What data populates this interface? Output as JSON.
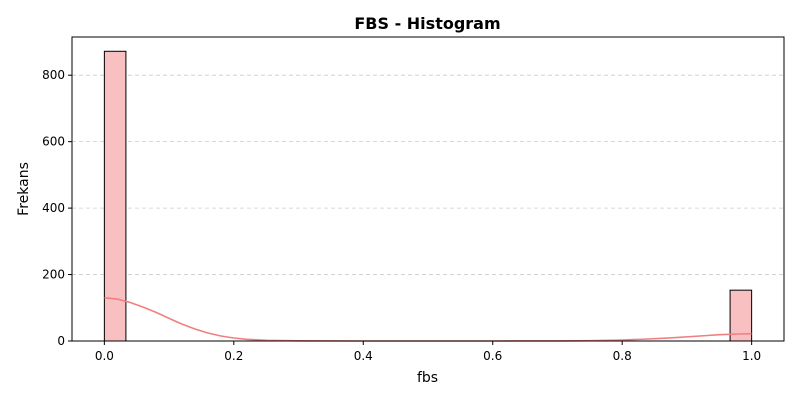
{
  "chart_data": {
    "type": "bar",
    "title": "FBS - Histogram",
    "xlabel": "fbs",
    "ylabel": "Frekans",
    "xlim": [
      -0.05,
      1.05
    ],
    "ylim": [
      0,
      915
    ],
    "xticks": [
      0.0,
      0.2,
      0.4,
      0.6,
      0.8,
      1.0
    ],
    "xtick_labels": [
      "0.0",
      "0.2",
      "0.4",
      "0.6",
      "0.8",
      "1.0"
    ],
    "yticks": [
      0,
      200,
      400,
      600,
      800
    ],
    "ytick_labels": [
      "0",
      "200",
      "400",
      "600",
      "800"
    ],
    "grid": "y-dashed",
    "bars": [
      {
        "x0": 0.0,
        "x1": 0.0333,
        "value": 872
      },
      {
        "x0": 0.9667,
        "x1": 1.0,
        "value": 153
      }
    ],
    "kde": {
      "x": [
        0.0,
        0.02,
        0.04,
        0.06,
        0.08,
        0.1,
        0.12,
        0.14,
        0.16,
        0.18,
        0.2,
        0.22,
        0.25,
        0.3,
        0.4,
        0.5,
        0.6,
        0.7,
        0.75,
        0.8,
        0.84,
        0.88,
        0.92,
        0.95,
        0.98,
        1.0
      ],
      "y": [
        130,
        126,
        116,
        102,
        86,
        68,
        51,
        36,
        24,
        15,
        9,
        5,
        2,
        0.5,
        0,
        0,
        0,
        0.3,
        1,
        3,
        6,
        10,
        15,
        19,
        21,
        22
      ]
    },
    "colors": {
      "bar_fill": "#f8c0c0",
      "bar_edge": "#000000",
      "kde_line": "#f08080",
      "grid": "#cccccc"
    }
  }
}
